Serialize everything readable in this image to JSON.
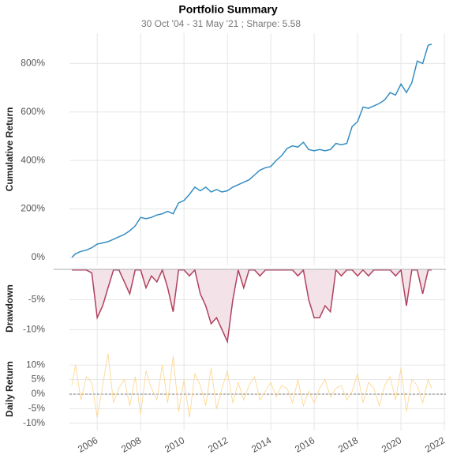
{
  "chart_data": [
    {
      "type": "line",
      "title": "Portfolio Summary",
      "subtitle": "30 Oct '04 - 31 May '21 ;  Sharpe: 5.58",
      "ylabel": "Cumulative Return",
      "x": [
        2004.83,
        2005,
        2005.25,
        2005.5,
        2005.75,
        2006,
        2006.25,
        2006.5,
        2006.75,
        2007,
        2007.25,
        2007.5,
        2007.75,
        2008,
        2008.25,
        2008.5,
        2008.75,
        2009,
        2009.25,
        2009.5,
        2009.75,
        2010,
        2010.25,
        2010.5,
        2010.75,
        2011,
        2011.25,
        2011.5,
        2011.75,
        2012,
        2012.25,
        2012.5,
        2012.75,
        2013,
        2013.25,
        2013.5,
        2013.75,
        2014,
        2014.25,
        2014.5,
        2014.75,
        2015,
        2015.25,
        2015.5,
        2015.75,
        2016,
        2016.25,
        2016.5,
        2016.75,
        2017,
        2017.25,
        2017.5,
        2017.75,
        2018,
        2018.25,
        2018.5,
        2018.75,
        2019,
        2019.25,
        2019.5,
        2019.75,
        2020,
        2020.25,
        2020.5,
        2020.75,
        2021,
        2021.25,
        2021.41
      ],
      "series": [
        {
          "name": "Cumulative Return",
          "color": "#348dc1",
          "values": [
            0,
            15,
            25,
            30,
            40,
            55,
            60,
            65,
            75,
            85,
            95,
            110,
            130,
            165,
            160,
            165,
            175,
            180,
            190,
            180,
            225,
            235,
            260,
            290,
            275,
            290,
            270,
            280,
            270,
            275,
            290,
            300,
            310,
            320,
            340,
            360,
            370,
            375,
            400,
            420,
            450,
            460,
            455,
            475,
            445,
            440,
            445,
            440,
            445,
            470,
            465,
            470,
            540,
            560,
            620,
            615,
            625,
            635,
            650,
            680,
            670,
            715,
            680,
            720,
            810,
            800,
            875,
            880
          ]
        }
      ],
      "xlim": [
        2004.72,
        2022.07
      ],
      "ylim": [
        -33,
        925
      ],
      "yticks": [
        {
          "value": 0,
          "label": "0%"
        },
        {
          "value": 200,
          "label": "200%"
        },
        {
          "value": 400,
          "label": "400%"
        },
        {
          "value": 600,
          "label": "600%"
        },
        {
          "value": 800,
          "label": "800%"
        }
      ],
      "grid": true
    },
    {
      "type": "area",
      "ylabel": "Drawdown",
      "x": [
        2004.83,
        2005,
        2005.25,
        2005.5,
        2005.75,
        2006,
        2006.25,
        2006.5,
        2006.75,
        2007,
        2007.25,
        2007.5,
        2007.75,
        2008,
        2008.25,
        2008.5,
        2008.75,
        2009,
        2009.25,
        2009.5,
        2009.75,
        2010,
        2010.25,
        2010.5,
        2010.75,
        2011,
        2011.25,
        2011.5,
        2011.75,
        2012,
        2012.25,
        2012.5,
        2012.75,
        2013,
        2013.25,
        2013.5,
        2013.75,
        2014,
        2014.25,
        2014.5,
        2014.75,
        2015,
        2015.25,
        2015.5,
        2015.75,
        2016,
        2016.25,
        2016.5,
        2016.75,
        2017,
        2017.25,
        2017.5,
        2017.75,
        2018,
        2018.25,
        2018.5,
        2018.75,
        2019,
        2019.25,
        2019.5,
        2019.75,
        2020,
        2020.25,
        2020.5,
        2020.75,
        2021,
        2021.25,
        2021.41
      ],
      "series": [
        {
          "name": "Drawdown",
          "color": "#b0405e",
          "fill": "#f3e2e7",
          "values": [
            0,
            0,
            0,
            0,
            -0.5,
            -8,
            -6,
            -3,
            0,
            0,
            -2,
            -4,
            0,
            0,
            -3,
            -1,
            -2,
            0,
            -3,
            -7,
            0,
            0,
            -1,
            0,
            -4,
            -6,
            -9,
            -8,
            -10,
            -12,
            -5,
            0,
            -3,
            0,
            0,
            -1,
            0,
            0,
            0,
            0,
            0,
            0,
            -1,
            0,
            -5,
            -8,
            -8,
            -6,
            -7,
            0,
            -1,
            0,
            0,
            -1,
            0,
            -1,
            0,
            0,
            0,
            0,
            -1,
            0,
            -6,
            0,
            0,
            -4,
            0,
            0
          ]
        }
      ],
      "xlim": [
        2004.72,
        2022.07
      ],
      "ylim": [
        -13,
        0.1
      ],
      "yticks": [
        {
          "value": -5,
          "label": "-5%"
        },
        {
          "value": -10,
          "label": "-10%"
        }
      ],
      "grid": true
    },
    {
      "type": "line",
      "ylabel": "Daily Return",
      "zero_line": true,
      "x": [
        2004.83,
        2005,
        2005.25,
        2005.5,
        2005.75,
        2006,
        2006.25,
        2006.5,
        2006.75,
        2007,
        2007.25,
        2007.5,
        2007.75,
        2008,
        2008.25,
        2008.5,
        2008.75,
        2009,
        2009.25,
        2009.5,
        2009.75,
        2010,
        2010.25,
        2010.5,
        2010.75,
        2011,
        2011.25,
        2011.5,
        2011.75,
        2012,
        2012.25,
        2012.5,
        2012.75,
        2013,
        2013.25,
        2013.5,
        2013.75,
        2014,
        2014.25,
        2014.5,
        2014.75,
        2015,
        2015.25,
        2015.5,
        2015.75,
        2016,
        2016.25,
        2016.5,
        2016.75,
        2017,
        2017.25,
        2017.5,
        2017.75,
        2018,
        2018.25,
        2018.5,
        2018.75,
        2019,
        2019.25,
        2019.5,
        2019.75,
        2020,
        2020.25,
        2020.5,
        2020.75,
        2021,
        2021.25,
        2021.41
      ],
      "series": [
        {
          "name": "Daily Return",
          "color": "#fdd48a",
          "values": [
            3,
            10,
            -2,
            6,
            4,
            -8,
            3,
            14,
            -3,
            2,
            5,
            -4,
            6,
            -7,
            8,
            2,
            -2,
            10,
            -3,
            13,
            -6,
            5,
            -8,
            7,
            3,
            -4,
            9,
            -5,
            2,
            8,
            -3,
            4,
            -2,
            3,
            6,
            -2,
            1,
            4,
            -1,
            3,
            2,
            -3,
            5,
            -4,
            1,
            -3,
            2,
            5,
            -1,
            2,
            3,
            -2,
            1,
            7,
            -3,
            4,
            2,
            -4,
            3,
            6,
            -2,
            9,
            -6,
            5,
            3,
            -3,
            5,
            2
          ]
        }
      ],
      "xlim": [
        2004.72,
        2022.07
      ],
      "ylim": [
        -12.5,
        16
      ],
      "yticks": [
        {
          "value": 10,
          "label": "10%"
        },
        {
          "value": 5,
          "label": "5%"
        },
        {
          "value": 0,
          "label": "0%"
        },
        {
          "value": -5,
          "label": "-5%"
        },
        {
          "value": -10,
          "label": "-10%"
        }
      ],
      "xticks": [
        2006,
        2008,
        2010,
        2012,
        2014,
        2016,
        2018,
        2020,
        2022
      ],
      "grid": true
    }
  ]
}
